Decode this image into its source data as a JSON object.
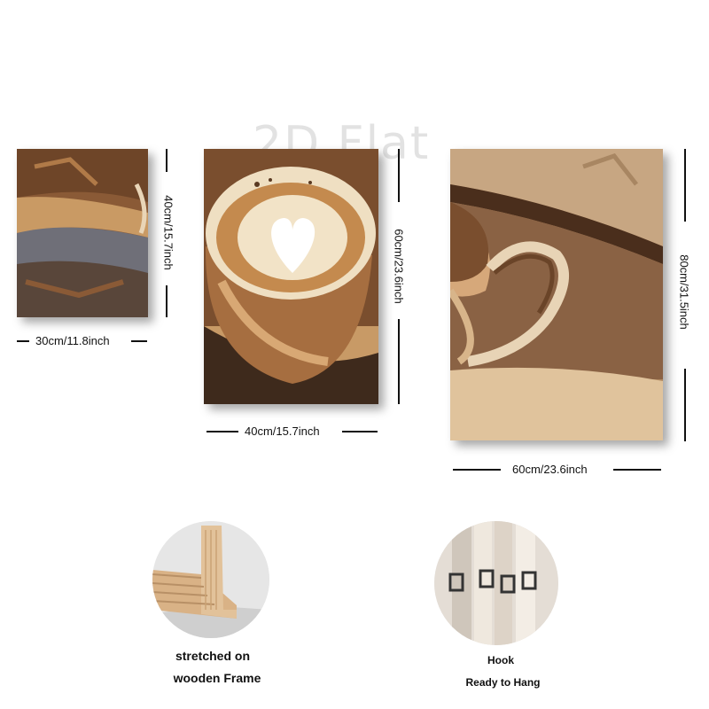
{
  "watermark": "2D Flat",
  "panels": [
    {
      "width_label": "30cm/11.8inch",
      "height_label": "40cm/15.7inch"
    },
    {
      "width_label": "40cm/15.7inch",
      "height_label": "60cm/23.6inch"
    },
    {
      "width_label": "60cm/23.6inch",
      "height_label": "80cm/31.5inch"
    }
  ],
  "features": [
    {
      "line1": "stretched on",
      "line2": "wooden Frame"
    },
    {
      "line1": "Hook",
      "line2": "Ready to Hang"
    }
  ],
  "colors": {
    "coffee_dark": "#5a3a22",
    "coffee_mid": "#9a6a44",
    "cream": "#f3e6cf",
    "wood": "#d7b48c"
  }
}
